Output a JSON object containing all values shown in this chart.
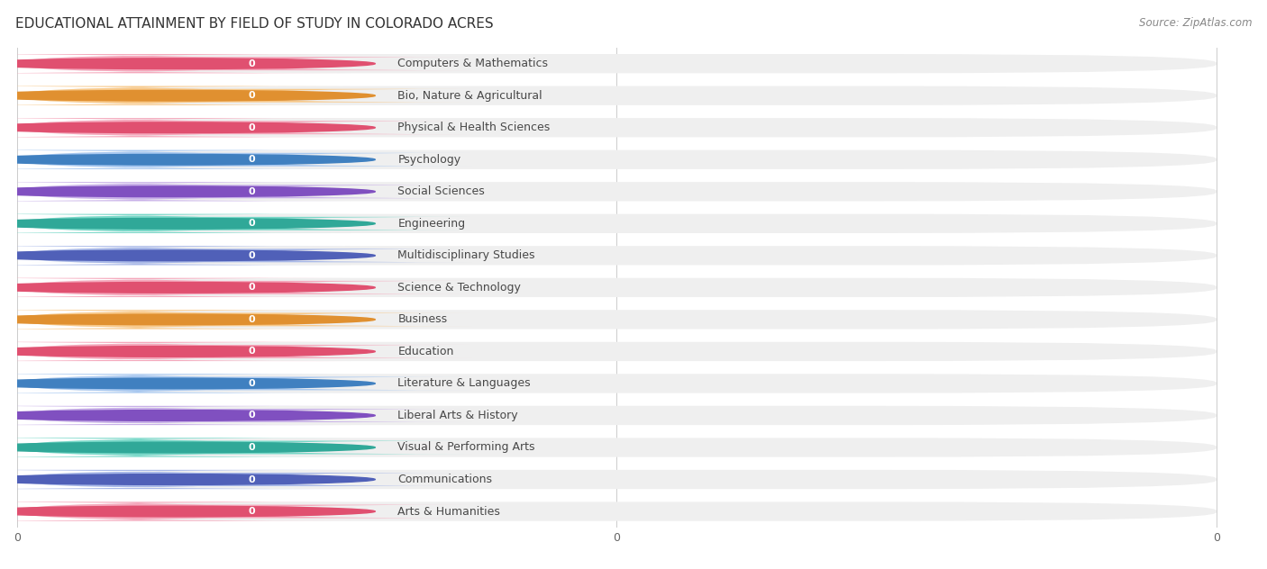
{
  "title": "EDUCATIONAL ATTAINMENT BY FIELD OF STUDY IN COLORADO ACRES",
  "source": "Source: ZipAtlas.com",
  "categories": [
    "Computers & Mathematics",
    "Bio, Nature & Agricultural",
    "Physical & Health Sciences",
    "Psychology",
    "Social Sciences",
    "Engineering",
    "Multidisciplinary Studies",
    "Science & Technology",
    "Business",
    "Education",
    "Literature & Languages",
    "Liberal Arts & History",
    "Visual & Performing Arts",
    "Communications",
    "Arts & Humanities"
  ],
  "values": [
    0,
    0,
    0,
    0,
    0,
    0,
    0,
    0,
    0,
    0,
    0,
    0,
    0,
    0,
    0
  ],
  "bar_colors": [
    "#f5a8bc",
    "#f8c98a",
    "#f5a8bc",
    "#a8c8f0",
    "#c8b0e8",
    "#78d8c8",
    "#a8b8e8",
    "#f5a8bc",
    "#f8c98a",
    "#f5a8bc",
    "#a8c8f0",
    "#c8b0e8",
    "#78d8c8",
    "#a8b8e8",
    "#f5a8bc"
  ],
  "dot_colors": [
    "#e05070",
    "#e09030",
    "#e05070",
    "#4080c0",
    "#8050c0",
    "#30a898",
    "#5060b8",
    "#e05070",
    "#e09030",
    "#e05070",
    "#4080c0",
    "#8050c0",
    "#30a898",
    "#5060b8",
    "#e05070"
  ],
  "background_color": "#ffffff",
  "bar_bg_color": "#efefef",
  "title_fontsize": 11,
  "label_fontsize": 9,
  "value_fontsize": 8
}
